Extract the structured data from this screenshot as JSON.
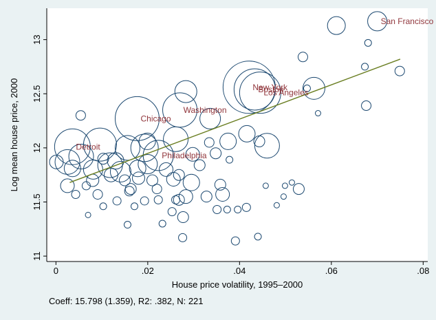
{
  "chart_data": {
    "type": "scatter",
    "x_label": "House price volatility, 1995–2000",
    "y_label": "Log mean house price, 2000",
    "note": "Coeff: 15.798 (1.359), R2: .382, N: 221",
    "color": "#1a476f",
    "label_color": "#90353b",
    "xlim": [
      -0.002,
      0.081
    ],
    "ylim": [
      10.95,
      13.29
    ],
    "xticks": [
      0,
      {
        "value": 0.02,
        "label": ".02"
      },
      {
        "value": 0.04,
        "label": ".04"
      },
      {
        "value": 0.06,
        "label": ".06"
      },
      {
        "value": 0.08,
        "label": ".08"
      }
    ],
    "yticks": [
      11,
      11.5,
      12,
      12.5,
      13
    ],
    "x": [
      0.07,
      0.0611,
      0.0538,
      0.068,
      0.0673,
      0.0749,
      0.0676,
      0.0571,
      0.0562,
      0.0547,
      0.0421,
      0.0433,
      0.0445,
      0.0283,
      0.027,
      0.0336,
      0.0177,
      0.0416,
      0.046,
      0.0443,
      0.0375,
      0.0261,
      0.0334,
      0.0036,
      0.0223,
      0.0025,
      0.0055,
      0.0096,
      0.0199,
      0.0156,
      0.0193,
      0.0118,
      0.0081,
      0.0141,
      0.0178,
      0.0054,
      0.0378,
      0.0298,
      0.0313,
      0.0348,
      0.0256,
      0.0295,
      0.0328,
      0.0358,
      0.0363,
      0.0457,
      0.0499,
      0.0514,
      0.0529,
      0.0481,
      0.0496,
      0.0415,
      0.0351,
      0.0396,
      0.0373,
      0.0391,
      0.044,
      0.0277,
      0.0232,
      0.0253,
      0.0156,
      0.007,
      0.0103,
      0.0133,
      0.0193,
      0.0043,
      0.0066,
      0.0091,
      0.0163,
      0.0025,
      0.0001,
      0.0283,
      0.0223,
      0.0261,
      0.0171,
      0.0276,
      0.0268,
      0.0036,
      0.0103,
      0.0268,
      0.012,
      0.015,
      0.018,
      0.021,
      0.024,
      0.013,
      0.02,
      0.008,
      0.016,
      0.022
    ],
    "y": [
      13.17,
      13.13,
      12.84,
      12.97,
      12.75,
      12.71,
      12.39,
      12.32,
      12.55,
      12.55,
      12.56,
      12.54,
      12.51,
      12.52,
      12.35,
      12.27,
      12.27,
      12.13,
      12.02,
      12.06,
      12.06,
      12.08,
      12.05,
      12.01,
      11.93,
      11.87,
      11.92,
      12.03,
      12.06,
      12.0,
      12.0,
      11.84,
      11.8,
      11.78,
      11.81,
      12.3,
      11.89,
      11.94,
      11.84,
      11.95,
      11.71,
      11.68,
      11.55,
      11.66,
      11.57,
      11.65,
      11.65,
      11.68,
      11.62,
      11.47,
      11.55,
      11.45,
      11.43,
      11.43,
      11.43,
      11.14,
      11.18,
      11.36,
      11.3,
      11.41,
      11.29,
      11.38,
      11.46,
      11.51,
      11.51,
      11.57,
      11.65,
      11.57,
      11.62,
      11.65,
      11.87,
      11.55,
      11.52,
      11.52,
      11.46,
      11.17,
      11.75,
      11.81,
      11.9,
      11.52,
      11.75,
      11.7,
      11.72,
      11.7,
      11.8,
      11.88,
      11.85,
      11.7,
      11.6,
      11.62
    ],
    "sizes": [
      14,
      13,
      7,
      5,
      5,
      7,
      7,
      4,
      16,
      5,
      38,
      30,
      30,
      16,
      25,
      15,
      32,
      12,
      18,
      8,
      12,
      18,
      7,
      26,
      22,
      18,
      18,
      24,
      12,
      18,
      20,
      18,
      14,
      15,
      12,
      7,
      5,
      10,
      8,
      8,
      10,
      12,
      8,
      8,
      10,
      4,
      4,
      4,
      8,
      4,
      4,
      6,
      6,
      5,
      5,
      6,
      5,
      8,
      5,
      6,
      5,
      4,
      5,
      6,
      6,
      6,
      6,
      7,
      8,
      10,
      10,
      10,
      6,
      6,
      5,
      6,
      8,
      12,
      8,
      8,
      10,
      8,
      9,
      8,
      10,
      12,
      14,
      9,
      7,
      7
    ],
    "labels": [
      "San Francisco",
      null,
      null,
      null,
      null,
      null,
      null,
      null,
      null,
      null,
      "New York",
      "Boston",
      "Los Angeles",
      null,
      "Washington",
      null,
      "Chicago",
      null,
      null,
      null,
      null,
      null,
      null,
      "Detroit",
      "Philadelphia",
      null,
      null,
      null,
      null,
      null,
      null,
      null,
      null,
      null,
      null,
      null,
      null,
      null,
      null,
      null,
      null,
      null,
      null,
      null,
      null,
      null,
      null,
      null,
      null,
      null,
      null,
      null,
      null,
      null,
      null,
      null,
      null,
      null,
      null,
      null,
      null,
      null,
      null,
      null,
      null,
      null,
      null,
      null,
      null,
      null,
      null,
      null,
      null,
      null,
      null,
      null,
      null,
      null,
      null,
      null,
      null,
      null,
      null,
      null,
      null,
      null,
      null,
      null,
      null,
      null
    ],
    "fit_line": {
      "x": [
        0.003,
        0.075
      ],
      "values": [
        11.68,
        12.82
      ],
      "color": "#6b7f23"
    }
  }
}
